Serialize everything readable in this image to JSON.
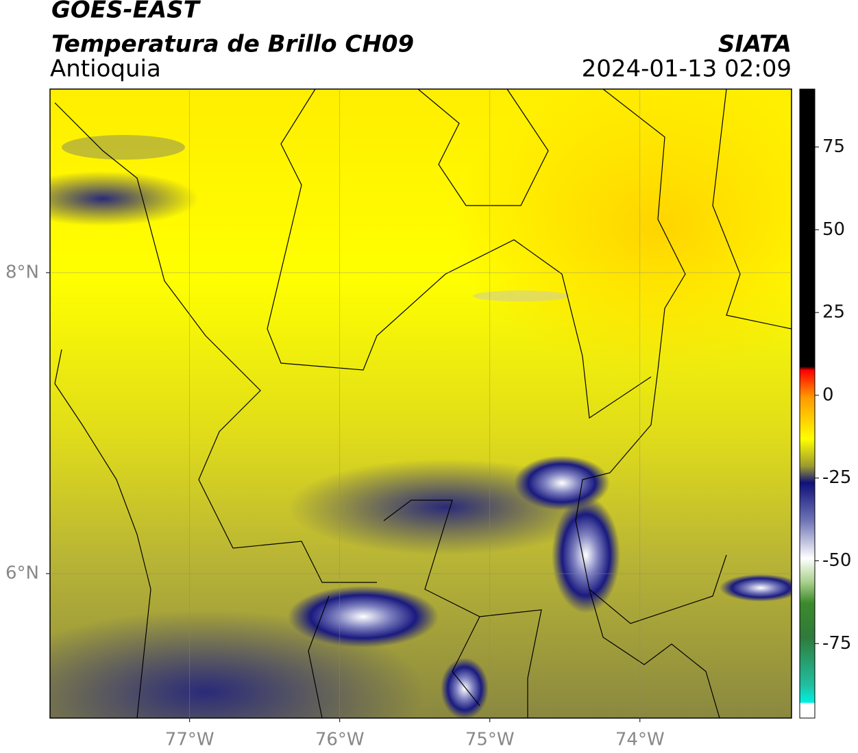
{
  "header": {
    "title": "GOES-EAST",
    "subtitle": "Temperatura de Brillo CH09",
    "region": "Antioquia",
    "source": "SIATA",
    "datetime": "2024-01-13 02:09"
  },
  "map": {
    "xlim": [
      -77.93,
      -72.99
    ],
    "ylim": [
      5.04,
      9.22
    ],
    "xticks": [
      {
        "value": -77,
        "label": "77°W"
      },
      {
        "value": -76,
        "label": "76°W"
      },
      {
        "value": -75,
        "label": "75°W"
      },
      {
        "value": -74,
        "label": "74°W"
      }
    ],
    "yticks": [
      {
        "value": 8,
        "label": "8°N"
      },
      {
        "value": 6,
        "label": "6°N"
      }
    ],
    "grid": true
  },
  "colorbar": {
    "lim": [
      -97.5,
      92.5
    ],
    "ticks": [
      75,
      50,
      25,
      0,
      -25,
      -50,
      -75
    ]
  }
}
